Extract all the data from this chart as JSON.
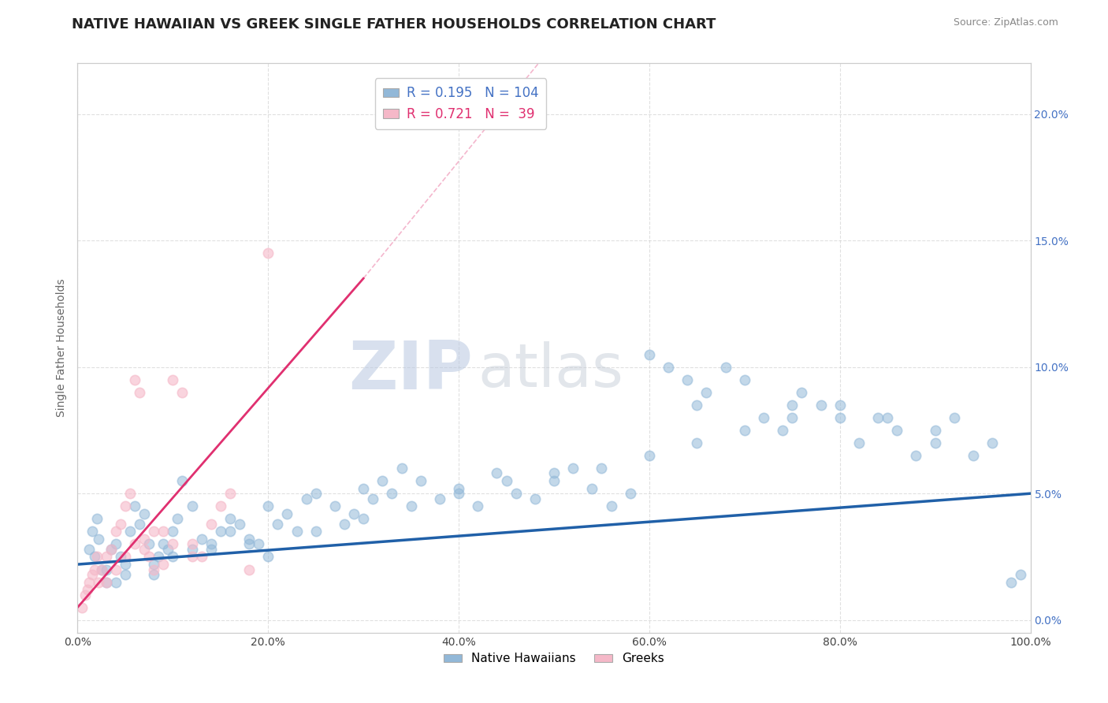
{
  "title": "NATIVE HAWAIIAN VS GREEK SINGLE FATHER HOUSEHOLDS CORRELATION CHART",
  "source_text": "Source: ZipAtlas.com",
  "ylabel": "Single Father Households",
  "watermark": "ZIPatlas",
  "xmin": 0.0,
  "xmax": 100.0,
  "ymin": -0.5,
  "ymax": 22.0,
  "yticks": [
    0,
    5,
    10,
    15,
    20
  ],
  "ytick_labels": [
    "0.0%",
    "5.0%",
    "10.0%",
    "15.0%",
    "20.0%"
  ],
  "xtick_vals": [
    0,
    20,
    40,
    60,
    80,
    100
  ],
  "xtick_labels": [
    "0.0%",
    "20.0%",
    "40.0%",
    "60.0%",
    "80.0%",
    "100.0%"
  ],
  "blue_color": "#92b8d8",
  "pink_color": "#f5b8c8",
  "blue_line_color": "#2060a8",
  "pink_line_color": "#e03070",
  "background_color": "#ffffff",
  "grid_color": "#cccccc",
  "title_fontsize": 13,
  "axis_label_fontsize": 10,
  "tick_fontsize": 10,
  "watermark_color": "#c8d4e8",
  "legend_R_blue": "0.195",
  "legend_N_blue": "104",
  "legend_R_pink": "0.721",
  "legend_N_pink": "39",
  "blue_label": "Native Hawaiians",
  "pink_label": "Greeks",
  "blue_scatter_x": [
    1.2,
    1.5,
    1.8,
    2.0,
    2.2,
    2.5,
    3.0,
    3.5,
    4.0,
    4.5,
    5.0,
    5.5,
    6.0,
    6.5,
    7.0,
    7.5,
    8.0,
    8.5,
    9.0,
    9.5,
    10.0,
    10.5,
    11.0,
    12.0,
    13.0,
    14.0,
    15.0,
    16.0,
    17.0,
    18.0,
    19.0,
    20.0,
    21.0,
    22.0,
    23.0,
    24.0,
    25.0,
    27.0,
    28.0,
    29.0,
    30.0,
    31.0,
    32.0,
    33.0,
    34.0,
    36.0,
    38.0,
    40.0,
    42.0,
    44.0,
    46.0,
    48.0,
    50.0,
    52.0,
    54.0,
    56.0,
    58.0,
    60.0,
    62.0,
    64.0,
    65.0,
    66.0,
    68.0,
    70.0,
    72.0,
    74.0,
    75.0,
    76.0,
    78.0,
    80.0,
    82.0,
    84.0,
    86.0,
    88.0,
    90.0,
    92.0,
    94.0,
    96.0,
    98.0,
    99.0,
    3.0,
    4.0,
    5.0,
    8.0,
    10.0,
    12.0,
    14.0,
    16.0,
    18.0,
    20.0,
    25.0,
    30.0,
    35.0,
    40.0,
    45.0,
    50.0,
    55.0,
    60.0,
    65.0,
    70.0,
    75.0,
    80.0,
    85.0,
    90.0
  ],
  "blue_scatter_y": [
    2.8,
    3.5,
    2.5,
    4.0,
    3.2,
    2.0,
    1.5,
    2.8,
    3.0,
    2.5,
    2.2,
    3.5,
    4.5,
    3.8,
    4.2,
    3.0,
    1.8,
    2.5,
    3.0,
    2.8,
    3.5,
    4.0,
    5.5,
    4.5,
    3.2,
    2.8,
    3.5,
    4.0,
    3.8,
    3.2,
    3.0,
    4.5,
    3.8,
    4.2,
    3.5,
    4.8,
    5.0,
    4.5,
    3.8,
    4.2,
    5.2,
    4.8,
    5.5,
    5.0,
    6.0,
    5.5,
    4.8,
    5.2,
    4.5,
    5.8,
    5.0,
    4.8,
    5.5,
    6.0,
    5.2,
    4.5,
    5.0,
    10.5,
    10.0,
    9.5,
    8.5,
    9.0,
    10.0,
    9.5,
    8.0,
    7.5,
    8.5,
    9.0,
    8.5,
    8.0,
    7.0,
    8.0,
    7.5,
    6.5,
    7.0,
    8.0,
    6.5,
    7.0,
    1.5,
    1.8,
    2.0,
    1.5,
    1.8,
    2.2,
    2.5,
    2.8,
    3.0,
    3.5,
    3.0,
    2.5,
    3.5,
    4.0,
    4.5,
    5.0,
    5.5,
    5.8,
    6.0,
    6.5,
    7.0,
    7.5,
    8.0,
    8.5,
    8.0,
    7.5
  ],
  "pink_scatter_x": [
    0.5,
    0.8,
    1.0,
    1.2,
    1.5,
    1.8,
    2.0,
    2.2,
    2.5,
    3.0,
    3.5,
    4.0,
    4.5,
    5.0,
    5.5,
    6.0,
    6.5,
    7.0,
    7.5,
    8.0,
    9.0,
    10.0,
    11.0,
    12.0,
    13.0,
    14.0,
    15.0,
    16.0,
    18.0,
    20.0,
    3.0,
    4.0,
    5.0,
    6.0,
    7.0,
    8.0,
    9.0,
    10.0,
    12.0
  ],
  "pink_scatter_y": [
    0.5,
    1.0,
    1.2,
    1.5,
    1.8,
    2.0,
    2.5,
    1.5,
    2.0,
    2.5,
    2.8,
    3.5,
    3.8,
    4.5,
    5.0,
    9.5,
    9.0,
    3.2,
    2.5,
    2.0,
    3.5,
    9.5,
    9.0,
    3.0,
    2.5,
    3.8,
    4.5,
    5.0,
    2.0,
    14.5,
    1.5,
    2.0,
    2.5,
    3.0,
    2.8,
    3.5,
    2.2,
    3.0,
    2.5
  ],
  "pink_line_start_x": 0.0,
  "pink_line_start_y": 0.5,
  "pink_line_end_x": 30.0,
  "pink_line_end_y": 13.5,
  "pink_dash_end_x": 70.0,
  "pink_dash_end_y": 32.0,
  "blue_line_start_x": 0.0,
  "blue_line_start_y": 2.2,
  "blue_line_end_x": 100.0,
  "blue_line_end_y": 5.0
}
